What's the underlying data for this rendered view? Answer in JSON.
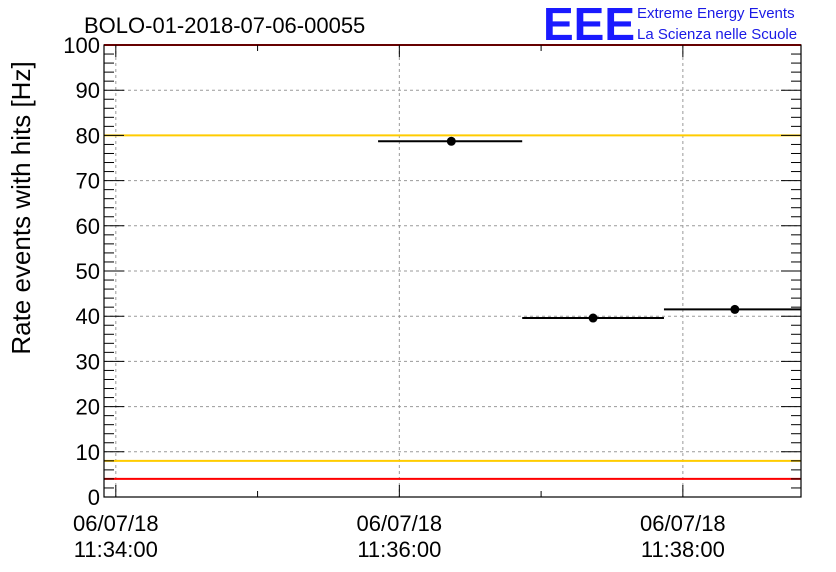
{
  "chart_data": {
    "type": "scatter",
    "title": "BOLO-01-2018-07-06-00055",
    "ylabel": "Rate events with hits [Hz]",
    "xlabel": "",
    "ylim": [
      0,
      100
    ],
    "y_ticks": [
      {
        "value": 0,
        "label": "0"
      },
      {
        "value": 10,
        "label": "10"
      },
      {
        "value": 20,
        "label": "20"
      },
      {
        "value": 30,
        "label": "30"
      },
      {
        "value": 40,
        "label": "40"
      },
      {
        "value": 50,
        "label": "50"
      },
      {
        "value": 60,
        "label": "60"
      },
      {
        "value": 70,
        "label": "70"
      },
      {
        "value": 80,
        "label": "80"
      },
      {
        "value": 90,
        "label": "90"
      },
      {
        "value": 100,
        "label": "100"
      }
    ],
    "xlim": [
      "11:33:55",
      "11:38:50"
    ],
    "x_ticks": [
      {
        "time": "11:34:00",
        "date_label": "06/07/18",
        "time_label": "11:34:00"
      },
      {
        "time": "11:36:00",
        "date_label": "06/07/18",
        "time_label": "11:36:00"
      },
      {
        "time": "11:38:00",
        "date_label": "06/07/18",
        "time_label": "11:38:00"
      }
    ],
    "grid": true,
    "points": [
      {
        "x": "11:36:22",
        "y": 78.7,
        "x_start": "11:35:51",
        "x_end": "11:36:52"
      },
      {
        "x": "11:37:22",
        "y": 39.6,
        "x_start": "11:36:52",
        "x_end": "11:37:52"
      },
      {
        "x": "11:38:22",
        "y": 41.5,
        "x_start": "11:37:52",
        "x_end": "11:38:50"
      }
    ],
    "reference_lines": [
      {
        "y": 4,
        "color": "#ff0000"
      },
      {
        "y": 8,
        "color": "#ffcc00"
      },
      {
        "y": 80,
        "color": "#ffcc00"
      },
      {
        "y": 100,
        "color": "#ff0000"
      }
    ]
  },
  "logo": {
    "mark": "EEE",
    "line1": "Extreme Energy Events",
    "line2": "La Scienza nelle Scuole",
    "color": "#1a1aff"
  }
}
